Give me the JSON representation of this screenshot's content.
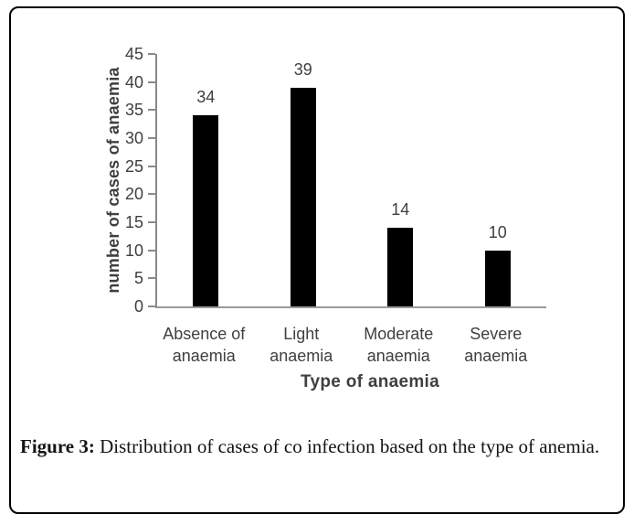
{
  "figure": {
    "caption": {
      "label": "Figure 3:",
      "text": "Distribution of cases of co infection based on the type of anemia."
    }
  },
  "chart_data": {
    "type": "bar",
    "title": "",
    "categories": [
      "Absence of anaemia",
      "Light anaemia",
      "Moderate anaemia",
      "Severe anaemia"
    ],
    "category_display": [
      [
        "Absence of",
        "anaemia"
      ],
      [
        "Light",
        "anaemia"
      ],
      [
        "Moderate",
        "anaemia"
      ],
      [
        "Severe",
        "anaemia"
      ]
    ],
    "values": [
      34,
      39,
      14,
      10
    ],
    "xlabel": "Type of anaemia",
    "ylabel": "number of cases of anaemia",
    "ylim": [
      0,
      45
    ],
    "ytick_step": 5,
    "grid": false,
    "legend_position": "none",
    "colors": {
      "bar": "#000000",
      "chart_text": "#3f3f3f",
      "axis_line": "#8a8a8a",
      "baseline": "#9a9a9a",
      "box_border": "#000000"
    }
  }
}
